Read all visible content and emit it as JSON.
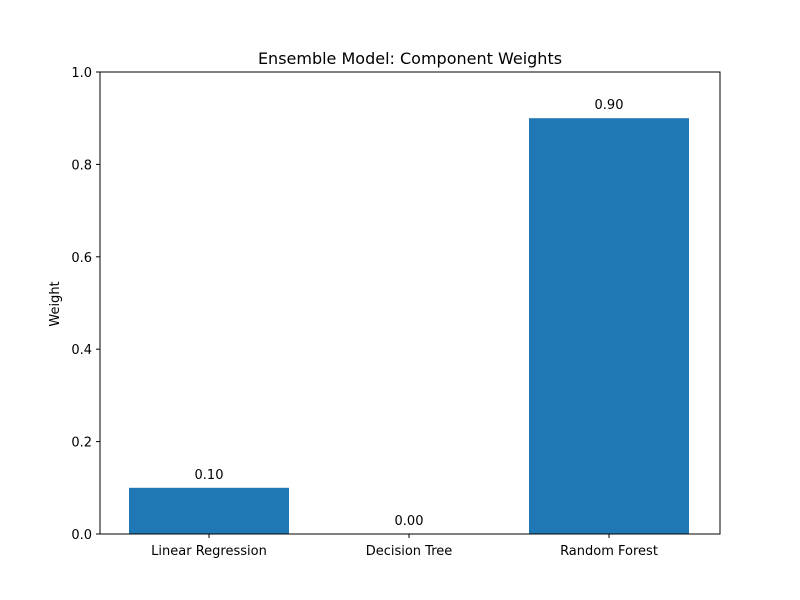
{
  "chart_data": {
    "type": "bar",
    "title": "Ensemble Model: Component Weights",
    "xlabel": "",
    "ylabel": "Weight",
    "categories": [
      "Linear Regression",
      "Decision Tree",
      "Random Forest"
    ],
    "values": [
      0.1,
      0.0,
      0.9
    ],
    "data_labels": [
      "0.10",
      "0.00",
      "0.90"
    ],
    "ylim": [
      0,
      1.0
    ],
    "yticks": [
      0.0,
      0.2,
      0.4,
      0.6,
      0.8,
      1.0
    ],
    "ytick_labels": [
      "0.0",
      "0.2",
      "0.4",
      "0.6",
      "0.8",
      "1.0"
    ],
    "grid": false,
    "bar_color": "#1f77b4"
  }
}
